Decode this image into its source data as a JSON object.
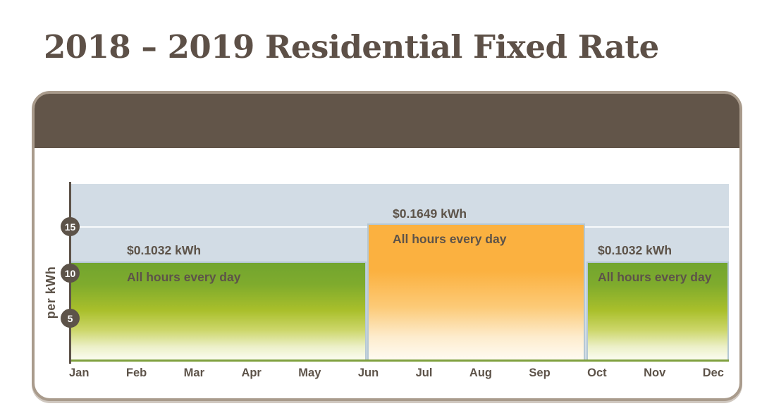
{
  "page": {
    "title": "2018 – 2019 Residential Fixed Rate"
  },
  "chart_data": {
    "type": "bar",
    "title": "2018 – 2019 Residential Fixed Rate",
    "ylabel": "per kWh",
    "xlabel": "",
    "x_categories": [
      "Jan",
      "Feb",
      "Mar",
      "Apr",
      "May",
      "Jun",
      "Jul",
      "Aug",
      "Sep",
      "Oct",
      "Nov",
      "Dec"
    ],
    "y_ticks": [
      "5",
      "10",
      "15"
    ],
    "ylim": [
      0,
      20
    ],
    "legend_position": "none",
    "grid": "single white horizontal gridline at value 15",
    "series": [
      {
        "name": "fixed-rate-jan-may",
        "start_month": "Jan",
        "end_month": "May",
        "value_cents_per_kwh": 10.32,
        "rate_label": "$0.1032 kWh",
        "hours_label": "All hours every day",
        "bar_style": "green-gradient"
      },
      {
        "name": "fixed-rate-jun-sep",
        "start_month": "Jun",
        "end_month": "Sep",
        "value_cents_per_kwh": 16.49,
        "rate_label": "$0.1649 kWh",
        "hours_label": "All hours every day",
        "bar_style": "orange-gradient"
      },
      {
        "name": "fixed-rate-oct-dec",
        "start_month": "Oct",
        "end_month": "Dec",
        "value_cents_per_kwh": 10.32,
        "rate_label": "$0.1032 kWh",
        "hours_label": "All hours every day",
        "bar_style": "green-gradient"
      }
    ]
  },
  "colors": {
    "title_text": "#5d5047",
    "card_border": "#a99b8c",
    "card_header_band": "#625549",
    "plot_background": "#d2dce5",
    "bar_border": "#b5c8d4",
    "bar_green_top": "#72a52f",
    "bar_orange_top": "#fbb140",
    "baseline_green": "#7fa03e",
    "axis_line": "#5d5349",
    "label_text": "#5d5349",
    "badge_background": "#5d5349",
    "badge_text": "#ffffff"
  }
}
